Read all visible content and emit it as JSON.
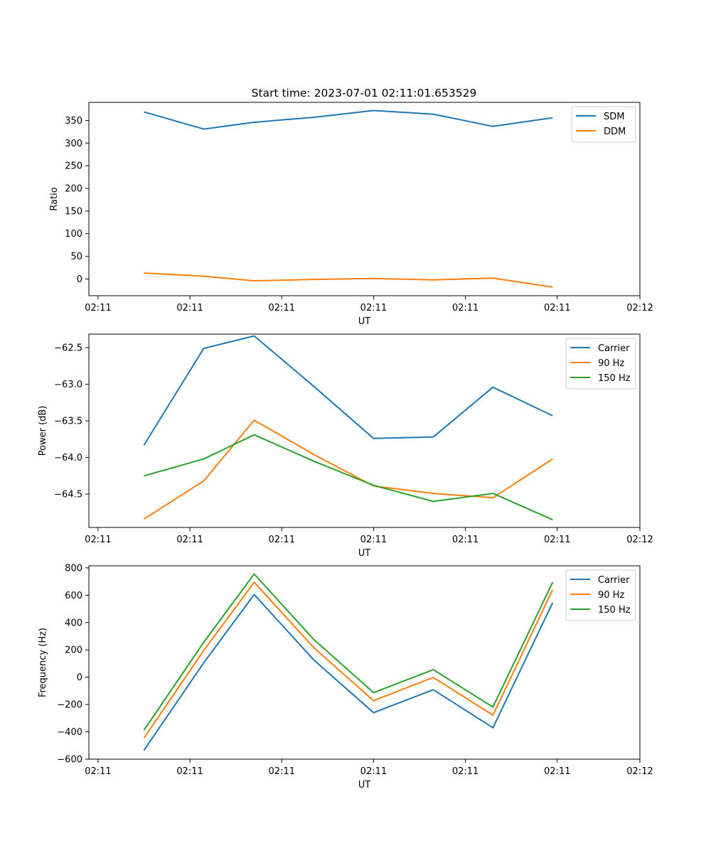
{
  "suptitle": "Start time: 2023-07-01 02:11:01.653529",
  "chart_data": [
    {
      "type": "line",
      "xlabel": "UT",
      "ylabel": "Ratio",
      "xlim": [
        0.0,
        6.0
      ],
      "ylim": [
        -37,
        390
      ],
      "xticks": [
        0.1,
        1.1,
        2.1,
        3.1,
        4.1,
        5.1,
        6.0
      ],
      "xtick_labels": [
        "02:11",
        "02:11",
        "02:11",
        "02:11",
        "02:11",
        "02:11",
        "02:12"
      ],
      "yticks": [
        0,
        50,
        100,
        150,
        200,
        250,
        300,
        350
      ],
      "ytick_labels": [
        "0",
        "50",
        "100",
        "150",
        "200",
        "250",
        "300",
        "350"
      ],
      "x": [
        0.6,
        1.25,
        1.8,
        2.45,
        3.1,
        3.75,
        4.4,
        5.05
      ],
      "series": [
        {
          "name": "SDM",
          "color": "#1f77b4",
          "values": [
            369,
            331,
            346,
            357,
            372,
            364,
            337,
            356
          ]
        },
        {
          "name": "DDM",
          "color": "#ff7f0e",
          "values": [
            13,
            6,
            -4,
            -1,
            1,
            -2,
            2,
            -18
          ]
        }
      ],
      "legend": "upper right"
    },
    {
      "type": "line",
      "xlabel": "UT",
      "ylabel": "Power (dB)",
      "xlim": [
        0.0,
        6.0
      ],
      "ylim": [
        -64.955,
        -62.315
      ],
      "xticks": [
        0.1,
        1.1,
        2.1,
        3.1,
        4.1,
        5.1,
        6.0
      ],
      "xtick_labels": [
        "02:11",
        "02:11",
        "02:11",
        "02:11",
        "02:11",
        "02:11",
        "02:12"
      ],
      "yticks": [
        -64.5,
        -64.0,
        -63.5,
        -63.0,
        -62.5
      ],
      "ytick_labels": [
        "−64.5",
        "−64.0",
        "−63.5",
        "−63.0",
        "−62.5"
      ],
      "x": [
        0.6,
        1.25,
        1.8,
        2.45,
        3.1,
        3.75,
        4.4,
        5.05
      ],
      "series": [
        {
          "name": "Carrier",
          "color": "#1f77b4",
          "values": [
            -63.83,
            -62.51,
            -62.34,
            -63.03,
            -63.74,
            -63.72,
            -63.04,
            -63.43
          ]
        },
        {
          "name": "90 Hz",
          "color": "#ff7f0e",
          "values": [
            -64.84,
            -64.32,
            -63.49,
            -63.96,
            -64.39,
            -64.49,
            -64.55,
            -64.02
          ]
        },
        {
          "name": "150 Hz",
          "color": "#2ca02c",
          "values": [
            -64.25,
            -64.02,
            -63.69,
            -64.05,
            -64.38,
            -64.6,
            -64.49,
            -64.85
          ]
        }
      ],
      "legend": "upper right"
    },
    {
      "type": "line",
      "xlabel": "UT",
      "ylabel": "Frequency (Hz)",
      "xlim": [
        0.0,
        6.0
      ],
      "ylim": [
        -600,
        815
      ],
      "xticks": [
        0.1,
        1.1,
        2.1,
        3.1,
        4.1,
        5.1,
        6.0
      ],
      "xtick_labels": [
        "02:11",
        "02:11",
        "02:11",
        "02:11",
        "02:11",
        "02:11",
        "02:12"
      ],
      "yticks": [
        -600,
        -400,
        -200,
        0,
        200,
        400,
        600,
        800
      ],
      "ytick_labels": [
        "−600",
        "−400",
        "−200",
        "0",
        "200",
        "400",
        "600",
        "800"
      ],
      "x": [
        0.6,
        1.25,
        1.8,
        2.45,
        3.1,
        3.75,
        4.4,
        5.05
      ],
      "series": [
        {
          "name": "Carrier",
          "color": "#1f77b4",
          "values": [
            -535,
            105,
            605,
            125,
            -260,
            -92,
            -370,
            545
          ]
        },
        {
          "name": "90 Hz",
          "color": "#ff7f0e",
          "values": [
            -445,
            195,
            695,
            215,
            -172,
            -2,
            -278,
            640
          ]
        },
        {
          "name": "150 Hz",
          "color": "#2ca02c",
          "values": [
            -388,
            255,
            755,
            275,
            -113,
            55,
            -218,
            695
          ]
        }
      ],
      "legend": "upper right"
    }
  ]
}
